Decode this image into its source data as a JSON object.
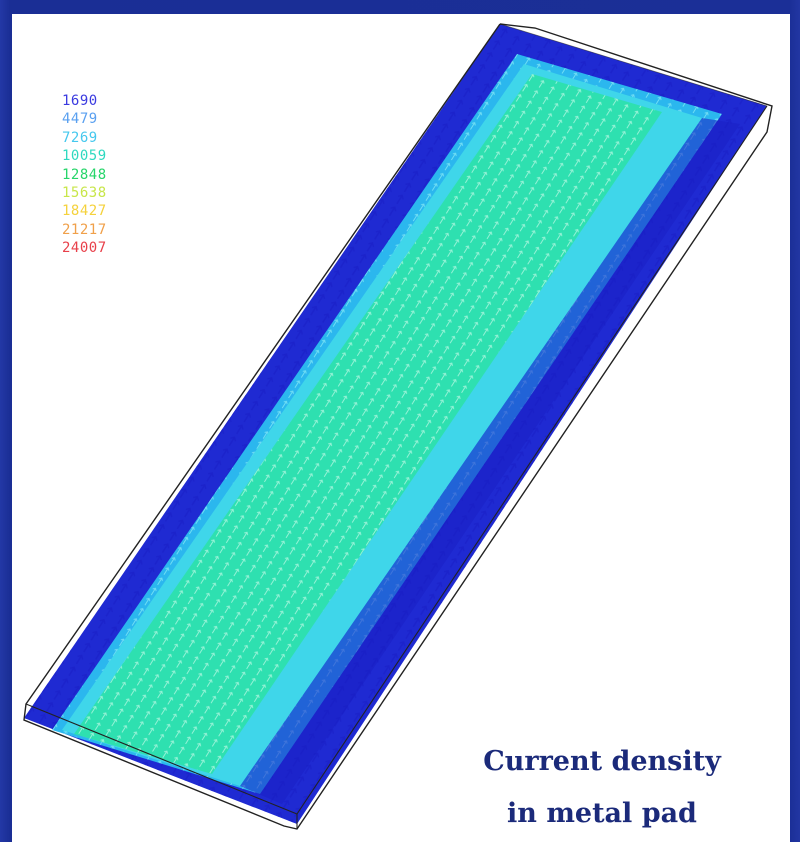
{
  "legend": [
    {
      "value": "1690",
      "color": "#3a3ae0"
    },
    {
      "value": "4479",
      "color": "#5aa0f0"
    },
    {
      "value": "7269",
      "color": "#46c8ee"
    },
    {
      "value": "10059",
      "color": "#2fd9c0"
    },
    {
      "value": "12848",
      "color": "#27d56a"
    },
    {
      "value": "15638",
      "color": "#c8e64a"
    },
    {
      "value": "18427",
      "color": "#f5d23c"
    },
    {
      "value": "21217",
      "color": "#f0a04a"
    },
    {
      "value": "24007",
      "color": "#e8404a"
    }
  ],
  "caption": {
    "line1": "Current density",
    "line2": "in metal pad"
  },
  "colors": {
    "background": "#1a2f8f",
    "caption": "#1b2a7a",
    "outline": "#222222"
  }
}
